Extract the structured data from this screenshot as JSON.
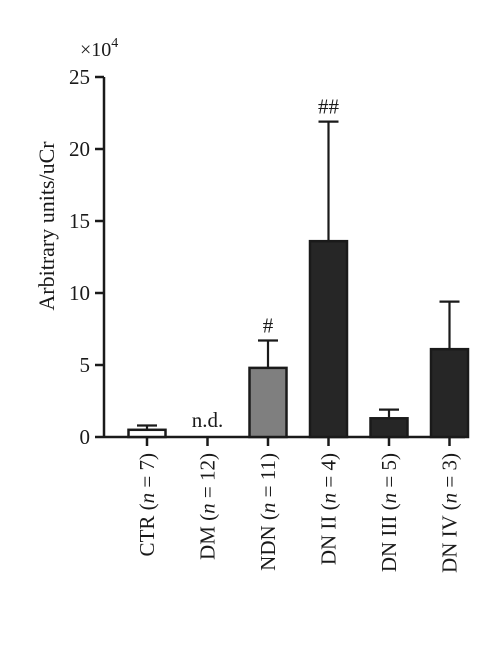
{
  "chart_data": {
    "type": "bar",
    "title": "",
    "ylabel": "Arbitrary units/uCr",
    "xlabel": "",
    "multiplier": "×10",
    "multiplier_exp": "4",
    "ylim": [
      0,
      25
    ],
    "yticks": [
      "0",
      "5",
      "10",
      "15",
      "20",
      "25"
    ],
    "categories": [
      {
        "pre": "CTR (",
        "n": "n",
        "post": " = 7)"
      },
      {
        "pre": "DM (",
        "n": "n",
        "post": " = 12)"
      },
      {
        "pre": "NDN (",
        "n": "n",
        "post": " = 11)"
      },
      {
        "pre": "DN II (",
        "n": "n",
        "post": " = 4)"
      },
      {
        "pre": "DN III (",
        "n": "n",
        "post": " = 5)"
      },
      {
        "pre": "DN IV (",
        "n": "n",
        "post": " = 3)"
      }
    ],
    "values": [
      0.5,
      0,
      4.8,
      13.6,
      1.3,
      6.1
    ],
    "errors": [
      0.3,
      0,
      1.9,
      8.3,
      0.6,
      3.3
    ],
    "annotations": [
      "",
      "n.d.",
      "#",
      "##",
      "",
      ""
    ],
    "colors": {
      "CTR": "#ffffff",
      "DM": "#ffffff",
      "NDN": "#7f7f7f",
      "DN II": "#262626",
      "DN III": "#262626",
      "DN IV": "#262626",
      "axis": "#1a1a1a"
    }
  }
}
